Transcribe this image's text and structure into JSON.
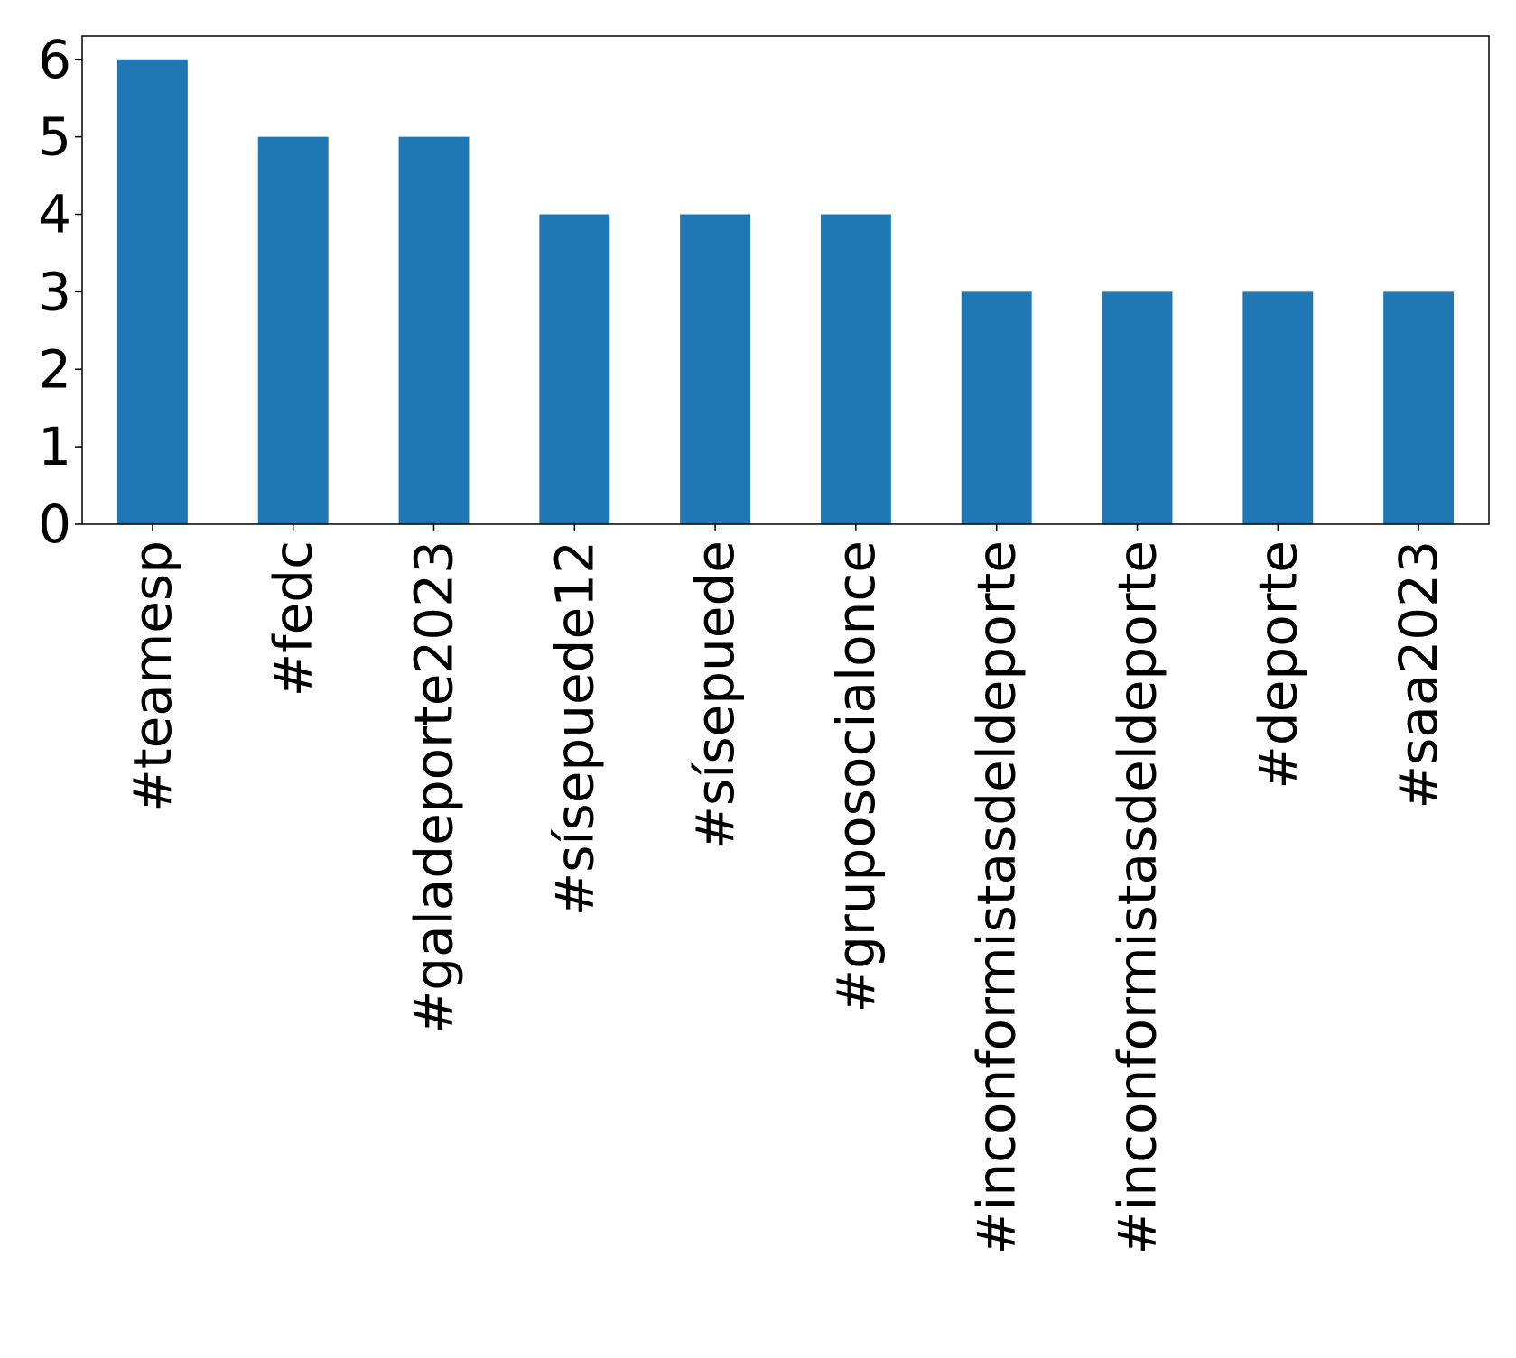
{
  "chart_data": {
    "type": "bar",
    "title": "",
    "xlabel": "",
    "ylabel": "",
    "categories": [
      "#teamesp",
      "#fedc",
      "#galadeporte2023",
      "#sísepuede12",
      "#sísepuede",
      "#gruposocialonce",
      "#inconformistasdeldeporte",
      "#inconformistasdeldeporte",
      "#deporte",
      "#saa2023"
    ],
    "values": [
      6,
      5,
      5,
      4,
      4,
      4,
      3,
      3,
      3,
      3
    ],
    "ylim": [
      0,
      6.3
    ],
    "yticks": [
      "0",
      "1",
      "2",
      "3",
      "4",
      "5",
      "6"
    ],
    "bar_color": "#1f77b4",
    "grid": false,
    "legend": "none"
  }
}
